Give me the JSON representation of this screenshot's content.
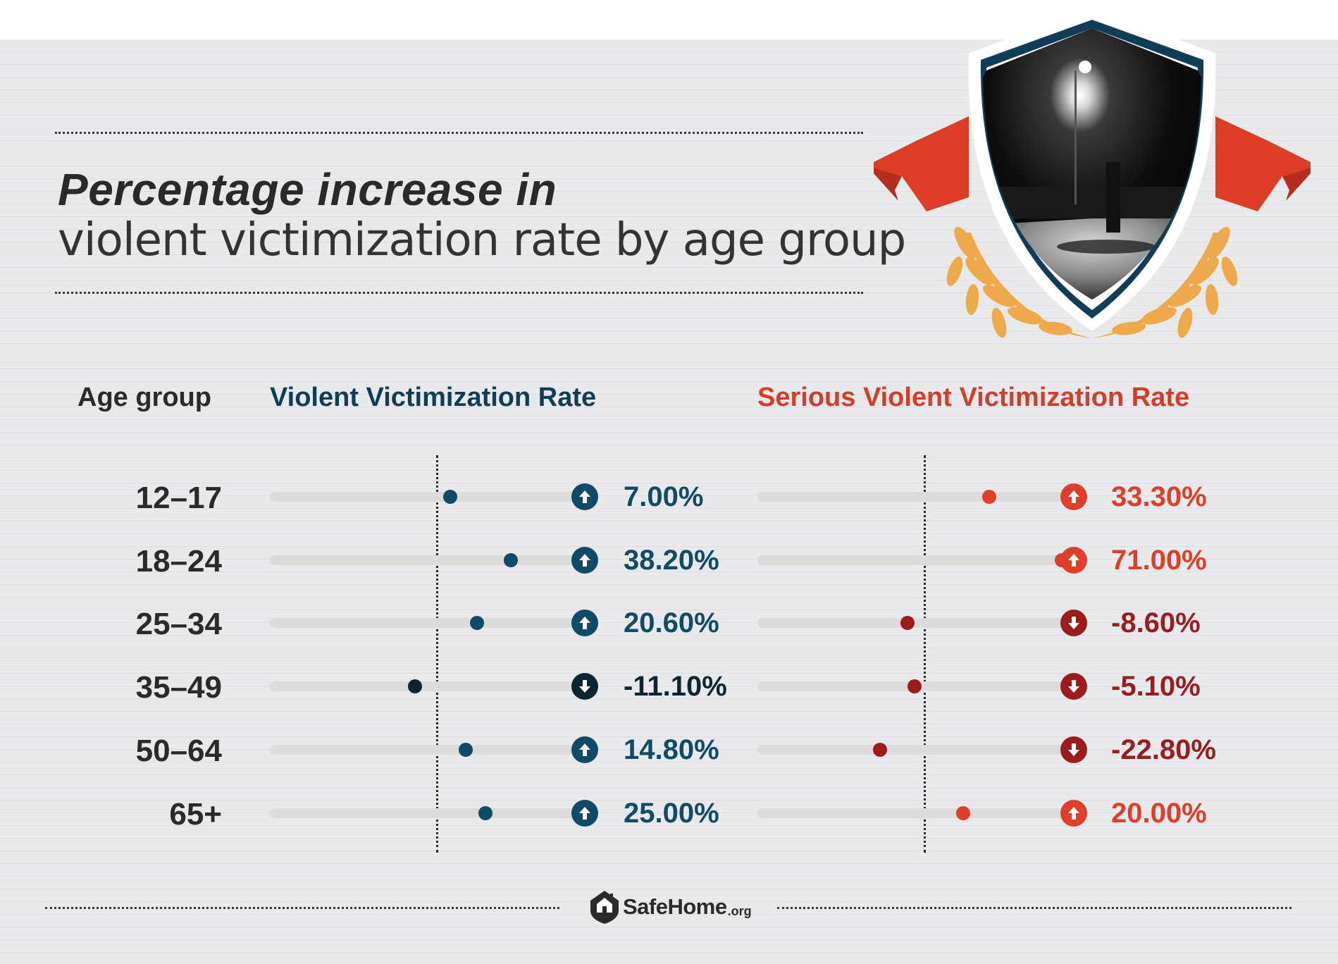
{
  "title": {
    "line1": "Percentage increase in",
    "line2": "violent victimization rate by age group"
  },
  "headers": {
    "age": "Age group",
    "violent": "Violent Victimization Rate",
    "serious": "Serious Violent Victimization Rate"
  },
  "logo": {
    "name": "SafeHome",
    "suffix": ".org"
  },
  "colors": {
    "violent_up": "#0f4a66",
    "violent_down": "#0d2530",
    "serious_up": "#e03e28",
    "serious_down": "#9c1c1c",
    "laurel": "#eeaa4a",
    "ribbon": "#dd3c25",
    "shield": "#0f3d57"
  },
  "chart_data": {
    "type": "dot",
    "categories": [
      "12–17",
      "18–24",
      "25–34",
      "35–49",
      "50–64",
      "65+"
    ],
    "series": [
      {
        "name": "Violent Victimization Rate",
        "values": [
          7.0,
          38.2,
          20.6,
          -11.1,
          14.8,
          25.0
        ],
        "labels": [
          "7.00%",
          "38.20%",
          "20.60%",
          "-11.10%",
          "14.80%",
          "25.00%"
        ]
      },
      {
        "name": "Serious Violent Victimization Rate",
        "values": [
          33.3,
          71.0,
          -8.6,
          -5.1,
          -22.8,
          20.0
        ],
        "labels": [
          "33.30%",
          "71.00%",
          "-8.60%",
          "-5.10%",
          "-22.80%",
          "20.00%"
        ]
      }
    ]
  }
}
